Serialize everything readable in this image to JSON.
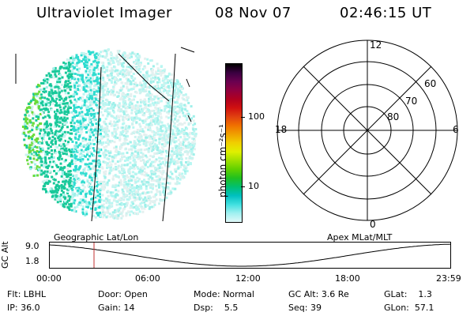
{
  "header": {
    "title": "Ultraviolet Imager",
    "date": "08 Nov 07",
    "time": "02:46:15 UT"
  },
  "colorbar": {
    "unit_label": "photon cm⁻²s⁻¹",
    "ticks": [
      "100",
      "10"
    ],
    "colors": [
      "#000000",
      "#3a0040",
      "#6a0050",
      "#900040",
      "#b00020",
      "#d01010",
      "#e04010",
      "#f07000",
      "#f0a000",
      "#f0d000",
      "#e0f000",
      "#a0e000",
      "#60d000",
      "#20c020",
      "#00c070",
      "#00c0c0",
      "#40e0e0",
      "#a0f0f0",
      "#e0f8f8"
    ]
  },
  "polar": {
    "mlt_labels": {
      "top": "12",
      "left": "18",
      "right": "6",
      "bottom": "0"
    },
    "lat_labels": [
      "60",
      "70",
      "80"
    ]
  },
  "timeline": {
    "left_title": "Geographic Lat/Lon",
    "right_title": "Apex MLat/MLT",
    "axis_label": "GC Alt",
    "y_ticks": [
      "9.0",
      "1.8"
    ],
    "x_ticks": [
      "00:00",
      "06:00",
      "12:00",
      "18:00",
      "23:59"
    ],
    "marker_color": "#c03030"
  },
  "info": {
    "flt_label": "Flt:",
    "flt_value": "LBHL",
    "ip_label": "IP:",
    "ip_value": "36.0",
    "door_label": "Door:",
    "door_value": "Open",
    "gain_label": "Gain:",
    "gain_value": "14",
    "mode_label": "Mode:",
    "mode_value": "Normal",
    "dsp_label": "Dsp:",
    "dsp_value": "5.5",
    "gcalt_label": "GC Alt:",
    "gcalt_value": "3.6 Re",
    "seq_label": "Seq:",
    "seq_value": "39",
    "glat_label": "GLat:",
    "glat_value": "1.3",
    "glon_label": "GLon:",
    "glon_value": "57.1"
  }
}
